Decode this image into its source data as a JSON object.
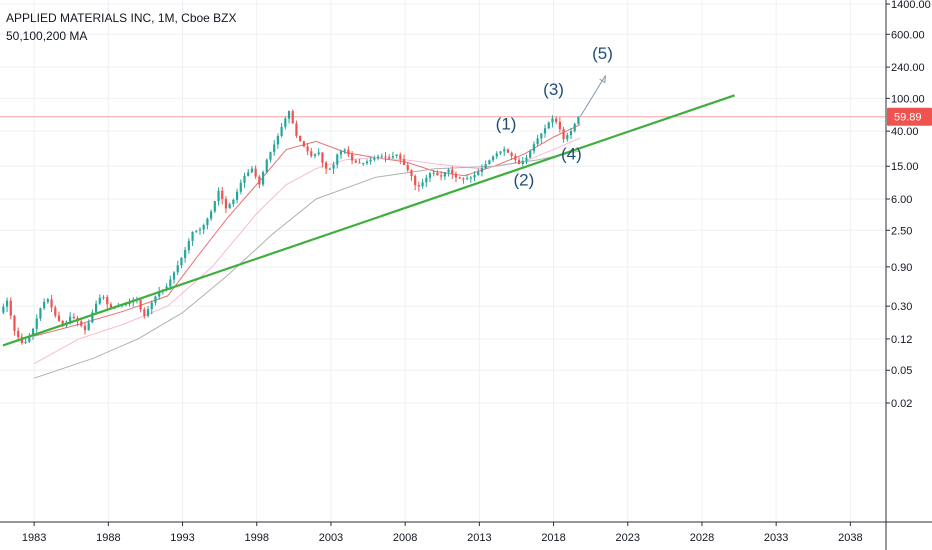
{
  "header": {
    "title": "APPLIED MATERIALS INC, 1M, Cboe BZX",
    "indicator": "50,100,200 MA"
  },
  "price_label": "59.89",
  "colors": {
    "up": "#26a69a",
    "down": "#ef5350",
    "trendline": "#3fae3f",
    "wave_label": "#1f4e79",
    "price_line": "#f4a6a6",
    "ma_red": "#e57373",
    "ma_pink": "#f8bbd0",
    "ma_grey": "#b0b0b0"
  },
  "chart_data": {
    "type": "line",
    "scale": "log",
    "x_axis": {
      "ticks": [
        "1983",
        "1988",
        "1993",
        "1998",
        "2003",
        "2008",
        "2013",
        "2018",
        "2023",
        "2028",
        "2033",
        "2038"
      ],
      "range": [
        1980.7,
        2043.5
      ]
    },
    "y_axis": {
      "ticks": [
        "1400.00",
        "600.00",
        "240.00",
        "100.00",
        "40.00",
        "15.00",
        "6.00",
        "2.50",
        "0.90",
        "0.30",
        "0.12",
        "0.05",
        "0.02"
      ],
      "tick_values": [
        1400,
        600,
        240,
        100,
        40,
        15,
        6,
        2.5,
        0.9,
        0.3,
        0.12,
        0.05,
        0.02
      ]
    },
    "last_price": 59.89,
    "price_path": [
      [
        1980.8,
        0.25
      ],
      [
        1981.3,
        0.35
      ],
      [
        1981.8,
        0.15
      ],
      [
        1982.4,
        0.1
      ],
      [
        1983.0,
        0.15
      ],
      [
        1983.6,
        0.3
      ],
      [
        1984.0,
        0.38
      ],
      [
        1984.6,
        0.22
      ],
      [
        1985.1,
        0.17
      ],
      [
        1985.6,
        0.23
      ],
      [
        1986.0,
        0.2
      ],
      [
        1986.6,
        0.15
      ],
      [
        1987.2,
        0.3
      ],
      [
        1987.7,
        0.42
      ],
      [
        1988.2,
        0.28
      ],
      [
        1988.8,
        0.3
      ],
      [
        1989.4,
        0.32
      ],
      [
        1990.0,
        0.38
      ],
      [
        1990.5,
        0.22
      ],
      [
        1991.0,
        0.32
      ],
      [
        1991.5,
        0.45
      ],
      [
        1992.0,
        0.5
      ],
      [
        1992.6,
        0.8
      ],
      [
        1993.2,
        1.3
      ],
      [
        1993.8,
        2.4
      ],
      [
        1994.4,
        2.6
      ],
      [
        1995.0,
        4.0
      ],
      [
        1995.6,
        8.0
      ],
      [
        1996.0,
        4.5
      ],
      [
        1996.6,
        6.0
      ],
      [
        1997.2,
        11
      ],
      [
        1997.8,
        14
      ],
      [
        1998.3,
        9
      ],
      [
        1998.8,
        18
      ],
      [
        1999.4,
        30
      ],
      [
        1999.9,
        50
      ],
      [
        2000.3,
        70
      ],
      [
        2000.8,
        35
      ],
      [
        2001.3,
        26
      ],
      [
        2001.8,
        20
      ],
      [
        2002.3,
        22
      ],
      [
        2002.7,
        14
      ],
      [
        2003.2,
        14
      ],
      [
        2003.6,
        22
      ],
      [
        2004.1,
        24
      ],
      [
        2004.6,
        17
      ],
      [
        2005.2,
        16
      ],
      [
        2005.8,
        18
      ],
      [
        2006.4,
        20
      ],
      [
        2007.0,
        19
      ],
      [
        2007.6,
        21
      ],
      [
        2008.0,
        16
      ],
      [
        2008.5,
        12
      ],
      [
        2008.9,
        8.0
      ],
      [
        2009.4,
        10
      ],
      [
        2009.9,
        13
      ],
      [
        2010.5,
        11
      ],
      [
        2011.0,
        14
      ],
      [
        2011.5,
        11
      ],
      [
        2012.0,
        10.5
      ],
      [
        2012.6,
        11
      ],
      [
        2013.1,
        13
      ],
      [
        2013.7,
        17
      ],
      [
        2014.2,
        21
      ],
      [
        2014.8,
        24
      ],
      [
        2015.3,
        20
      ],
      [
        2015.8,
        16
      ],
      [
        2016.3,
        19
      ],
      [
        2016.9,
        30
      ],
      [
        2017.5,
        42
      ],
      [
        2018.0,
        58
      ],
      [
        2018.4,
        50
      ],
      [
        2018.8,
        32
      ],
      [
        2019.3,
        40
      ],
      [
        2019.8,
        60
      ]
    ],
    "moving_averages": [
      {
        "name": "50",
        "color": "#e57373",
        "points": [
          [
            1983,
            0.13
          ],
          [
            1986,
            0.18
          ],
          [
            1989,
            0.26
          ],
          [
            1992,
            0.4
          ],
          [
            1994,
            1.2
          ],
          [
            1996,
            3.5
          ],
          [
            1998,
            9
          ],
          [
            2000,
            24
          ],
          [
            2002,
            30
          ],
          [
            2004,
            22
          ],
          [
            2006,
            19
          ],
          [
            2008,
            17
          ],
          [
            2010,
            13
          ],
          [
            2012,
            11.5
          ],
          [
            2014,
            15
          ],
          [
            2016,
            21
          ],
          [
            2018,
            34
          ],
          [
            2019.8,
            48
          ]
        ]
      },
      {
        "name": "100",
        "color": "#f8bbd0",
        "points": [
          [
            1983,
            0.06
          ],
          [
            1986,
            0.12
          ],
          [
            1989,
            0.18
          ],
          [
            1992,
            0.3
          ],
          [
            1995,
            0.9
          ],
          [
            1998,
            4
          ],
          [
            2000,
            9
          ],
          [
            2002,
            14
          ],
          [
            2004,
            18
          ],
          [
            2006,
            19
          ],
          [
            2008,
            18
          ],
          [
            2010,
            16
          ],
          [
            2013,
            14
          ],
          [
            2016,
            17
          ],
          [
            2018,
            24
          ],
          [
            2019.8,
            33
          ]
        ]
      },
      {
        "name": "200",
        "color": "#b0b0b0",
        "points": [
          [
            1983,
            0.04
          ],
          [
            1987,
            0.07
          ],
          [
            1990,
            0.12
          ],
          [
            1993,
            0.25
          ],
          [
            1996,
            0.7
          ],
          [
            1999,
            2.2
          ],
          [
            2002,
            6
          ],
          [
            2006,
            11
          ],
          [
            2010,
            14
          ],
          [
            2014,
            15
          ],
          [
            2017,
            18
          ],
          [
            2019.8,
            23
          ]
        ]
      }
    ],
    "trendline": {
      "from": [
        1980.9,
        0.1
      ],
      "to": [
        2030.2,
        109
      ]
    },
    "projection": {
      "from": [
        2019.8,
        60
      ],
      "to": [
        2021.5,
        190
      ]
    },
    "waves": [
      {
        "label": "(1)",
        "x": 2014.8,
        "y": 42
      },
      {
        "label": "(2)",
        "x": 2016.0,
        "y": 8.8
      },
      {
        "label": "(3)",
        "x": 2018.0,
        "y": 110
      },
      {
        "label": "(4)",
        "x": 2019.2,
        "y": 18
      },
      {
        "label": "(5)",
        "x": 2021.3,
        "y": 300
      }
    ]
  }
}
